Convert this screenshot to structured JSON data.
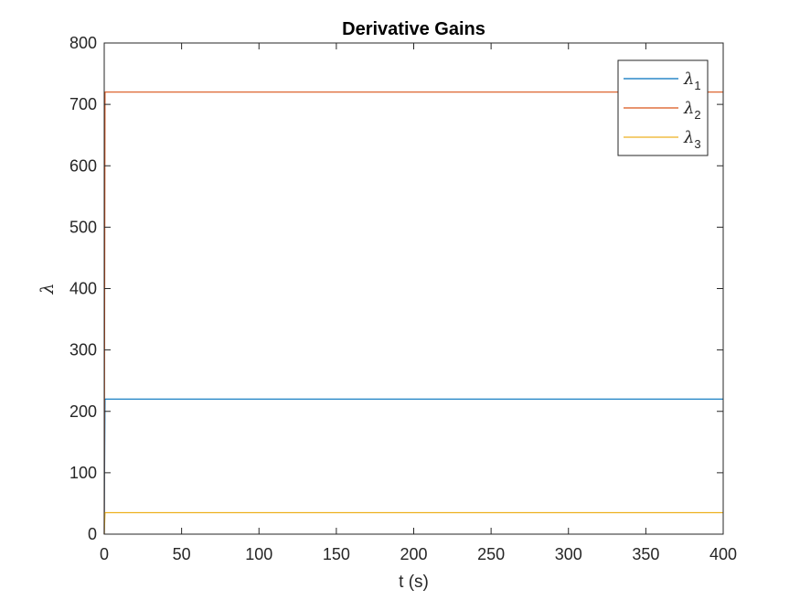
{
  "chart_data": {
    "type": "line",
    "title": "Derivative Gains",
    "xlabel": "t (s)",
    "ylabel": "λ",
    "xlim": [
      0,
      400
    ],
    "ylim": [
      0,
      800
    ],
    "xticks": [
      0,
      50,
      100,
      150,
      200,
      250,
      300,
      350,
      400
    ],
    "yticks": [
      0,
      100,
      200,
      300,
      400,
      500,
      600,
      700,
      800
    ],
    "grid": false,
    "legend_position": "top-right",
    "series": [
      {
        "name": "λ1",
        "symbol": "λ",
        "subscript": "1",
        "color": "#0072BD",
        "x": [
          0,
          0.5,
          400
        ],
        "y": [
          0,
          220,
          220
        ]
      },
      {
        "name": "λ2",
        "symbol": "λ",
        "subscript": "2",
        "color": "#D95319",
        "x": [
          0,
          0.5,
          400
        ],
        "y": [
          0,
          720,
          720
        ]
      },
      {
        "name": "λ3",
        "symbol": "λ",
        "subscript": "3",
        "color": "#EDB120",
        "x": [
          0,
          0.5,
          400
        ],
        "y": [
          0,
          35,
          35
        ]
      }
    ]
  }
}
